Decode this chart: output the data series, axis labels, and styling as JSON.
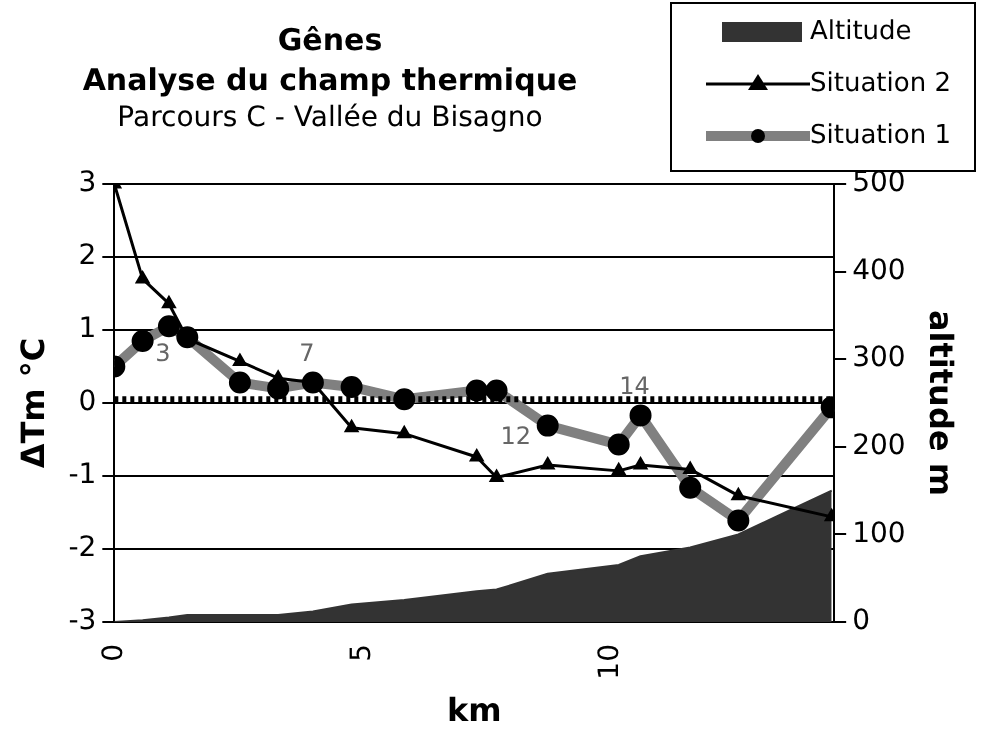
{
  "chart_data": {
    "type": "line",
    "title": "Gênes\nAnalyse du champ thermique",
    "subtitle": "Parcours C - Vallée du Bisagno",
    "xlabel": "km",
    "ylabel": "ΔTm °C",
    "y2label": "altitude m",
    "x": [
      0,
      0.57,
      1.1,
      1.47,
      2.53,
      3.3,
      4.0,
      4.78,
      5.84,
      7.3,
      7.7,
      8.73,
      10.16,
      10.6,
      11.6,
      12.57,
      14.45
    ],
    "series": [
      {
        "name": "Altitude",
        "type": "area",
        "axis": "y2",
        "color": "#333333",
        "values": [
          0,
          2,
          5,
          8,
          8,
          8,
          12,
          20,
          25,
          35,
          37,
          55,
          65,
          75,
          85,
          100,
          150
        ]
      },
      {
        "name": "Situation 2",
        "type": "line",
        "marker": "triangle",
        "color": "#000000",
        "values": [
          3,
          1.7,
          1.36,
          0.88,
          0.57,
          0.34,
          0.28,
          -0.34,
          -0.42,
          -0.74,
          -1.02,
          -0.85,
          -0.93,
          -0.85,
          -0.91,
          -1.27,
          -1.56
        ]
      },
      {
        "name": "Situation 1",
        "type": "line",
        "marker": "circle",
        "color": "#808080",
        "values": [
          0.5,
          0.85,
          1.05,
          0.9,
          0.28,
          0.2,
          0.28,
          0.22,
          0.05,
          0.17,
          0.17,
          -0.31,
          -0.57,
          -0.17,
          -1.16,
          -1.61,
          -0.06
        ]
      }
    ],
    "xlim": [
      0,
      14.5
    ],
    "xticks": [
      0,
      5,
      10
    ],
    "ylim": [
      -3,
      3
    ],
    "yticks": [
      -3,
      -2,
      -1,
      0,
      1,
      2,
      3
    ],
    "y2lim": [
      0,
      500
    ],
    "y2ticks": [
      0,
      100,
      200,
      300,
      400,
      500
    ],
    "ref_lines": [
      {
        "axis": "y",
        "value": 0.05,
        "line_style": "dotted",
        "color": "#000000"
      }
    ],
    "annotations": [
      {
        "text": "3",
        "x": 1.1,
        "y": 1.05
      },
      {
        "text": "7",
        "x": 4.0,
        "y": 0.28
      },
      {
        "text": "12",
        "x": 8.73,
        "y": -0.31
      },
      {
        "text": "14",
        "x": 10.6,
        "y": -0.17
      }
    ],
    "grid": "y",
    "legend": "top right"
  }
}
